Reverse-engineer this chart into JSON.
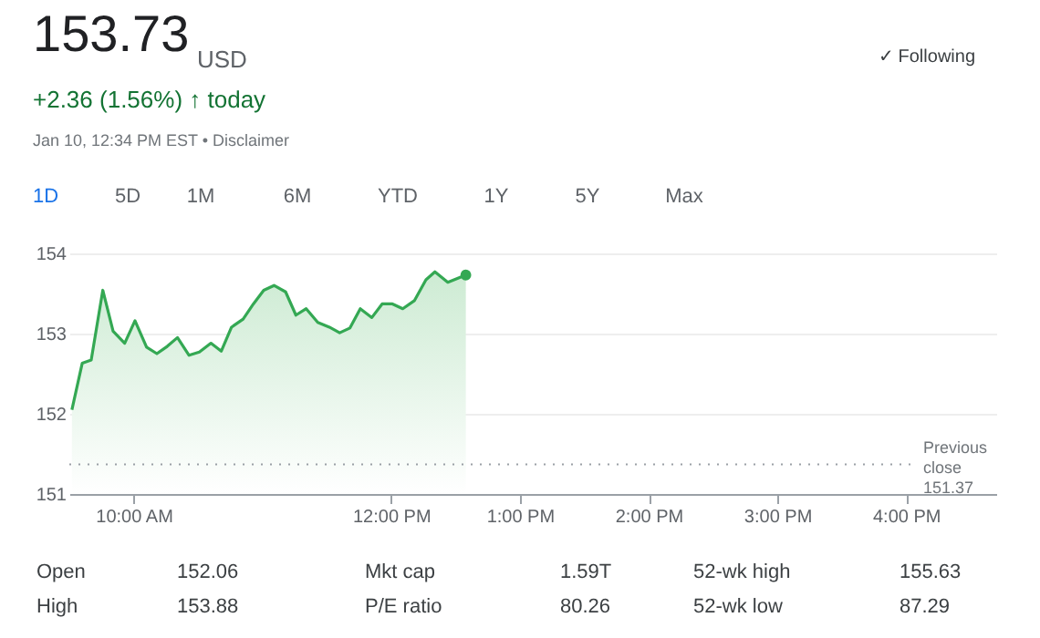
{
  "chart_data": {
    "type": "area",
    "color": "#34a853",
    "x": [
      9.52,
      9.6,
      9.67,
      9.76,
      9.84,
      9.93,
      10.01,
      10.1,
      10.18,
      10.26,
      10.34,
      10.43,
      10.51,
      10.6,
      10.68,
      10.76,
      10.85,
      10.93,
      11.01,
      11.09,
      11.18,
      11.26,
      11.34,
      11.43,
      11.52,
      11.6,
      11.68,
      11.76,
      11.85,
      11.93,
      12.01,
      12.09,
      12.18,
      12.27,
      12.34,
      12.44,
      12.58
    ],
    "values": [
      152.05,
      152.63,
      152.67,
      153.54,
      153.03,
      152.88,
      153.16,
      152.83,
      152.75,
      152.84,
      152.95,
      152.73,
      152.77,
      152.88,
      152.78,
      153.08,
      153.18,
      153.37,
      153.54,
      153.6,
      153.52,
      153.23,
      153.31,
      153.14,
      153.08,
      153.01,
      153.07,
      153.31,
      153.2,
      153.37,
      153.37,
      153.31,
      153.41,
      153.67,
      153.77,
      153.64,
      153.73
    ],
    "xlim": [
      9.5,
      16.7
    ],
    "xticks": [
      {
        "value": 10,
        "label": "10:00 AM"
      },
      {
        "value": 12,
        "label": "12:00 PM"
      },
      {
        "value": 13,
        "label": "1:00 PM"
      },
      {
        "value": 14,
        "label": "2:00 PM"
      },
      {
        "value": 15,
        "label": "3:00 PM"
      },
      {
        "value": 16,
        "label": "4:00 PM"
      }
    ],
    "ylim": [
      151,
      154
    ],
    "yticks": [
      151,
      152,
      153,
      154
    ],
    "grid": "y",
    "ref_lines": [
      {
        "axis": "y",
        "value": 151.37,
        "label": "Previous close 151.37",
        "color": "#9aa0a6",
        "line_style": "dotted"
      }
    ],
    "annotations": [
      "153.73",
      "USD",
      "+2.36 (1.56%) ↑ today",
      "Jan 10, 12:34 PM EST • Disclaimer",
      "✓ Following",
      "1D",
      "5D",
      "1M",
      "6M",
      "YTD",
      "1Y",
      "5Y",
      "Max",
      "Open",
      "152.06",
      "Mkt cap",
      "1.59T",
      "52-wk high",
      "155.63",
      "High",
      "153.88",
      "P/E ratio",
      "80.26",
      "52-wk low",
      "87.29"
    ]
  }
}
